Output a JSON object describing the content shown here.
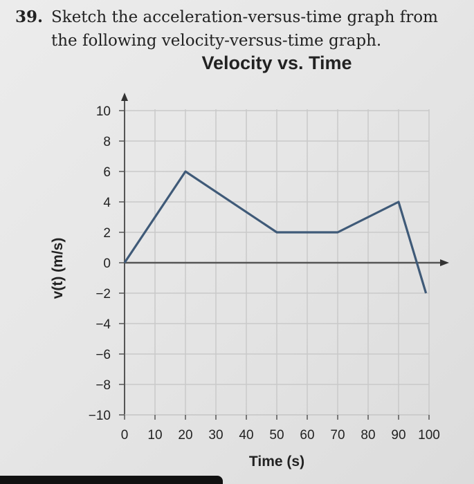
{
  "problem": {
    "number": "39.",
    "line1": "Sketch the acceleration-versus-time graph from",
    "line2": "the following velocity-versus-time graph."
  },
  "chart_data": {
    "type": "line",
    "title": "Velocity vs. Time",
    "xlabel": "Time (s)",
    "ylabel": "v(t) (m/s)",
    "xlim": [
      0,
      100
    ],
    "ylim": [
      -10,
      10
    ],
    "xticks": [
      "0",
      "10",
      "20",
      "30",
      "40",
      "50",
      "60",
      "70",
      "80",
      "90",
      "100"
    ],
    "yticks": [
      "10",
      "8",
      "6",
      "4",
      "2",
      "0",
      "−2",
      "−4",
      "−6",
      "−8",
      "−10"
    ],
    "grid": true,
    "colors": {
      "line": "#3f5a78",
      "grid": "#c9c9c9",
      "axis": "#555555"
    },
    "series": [
      {
        "x": [
          0,
          20,
          50,
          70,
          90,
          99
        ],
        "y": [
          0,
          6,
          2,
          2,
          4,
          -2
        ]
      }
    ]
  }
}
